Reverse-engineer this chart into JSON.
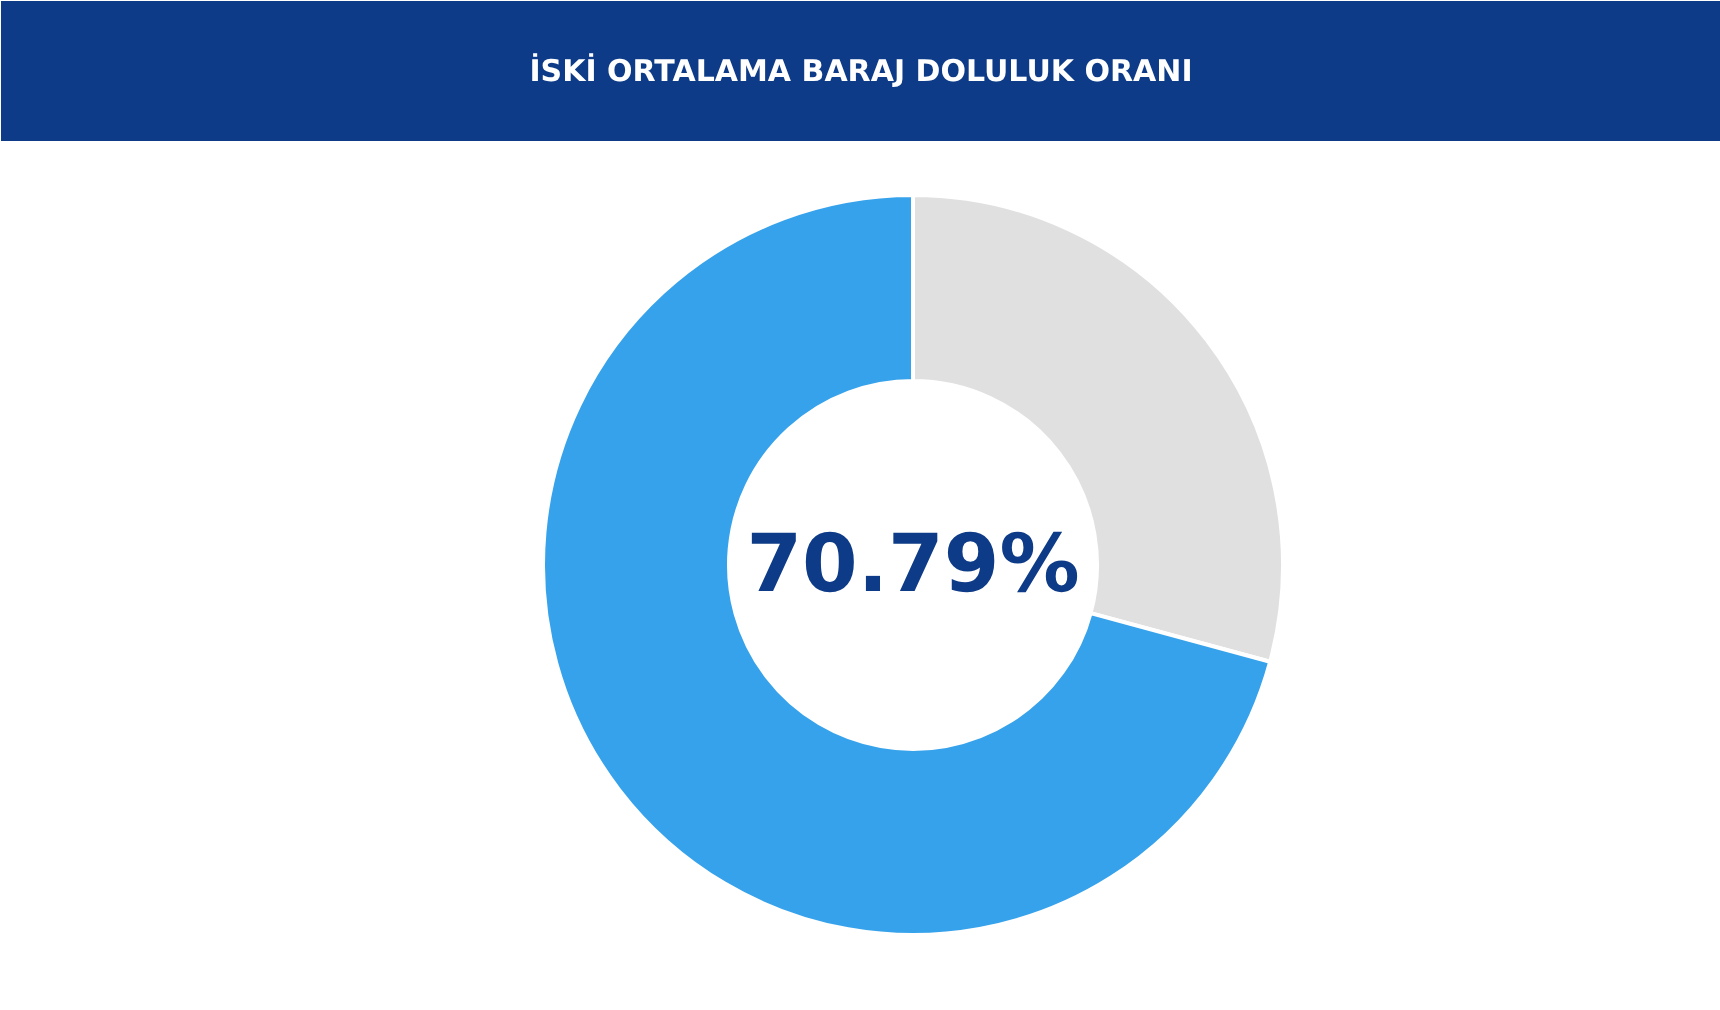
{
  "chart_data": {
    "type": "donut",
    "title": "İSKİ ORTALAMA BARAJ DOLULUK ORANI",
    "categories": [
      null,
      null
    ],
    "values": [
      29.21,
      70.79
    ],
    "colors": [
      "#e0e0e0",
      "#36a2eb"
    ],
    "annotations": [
      "70.79%"
    ]
  }
}
